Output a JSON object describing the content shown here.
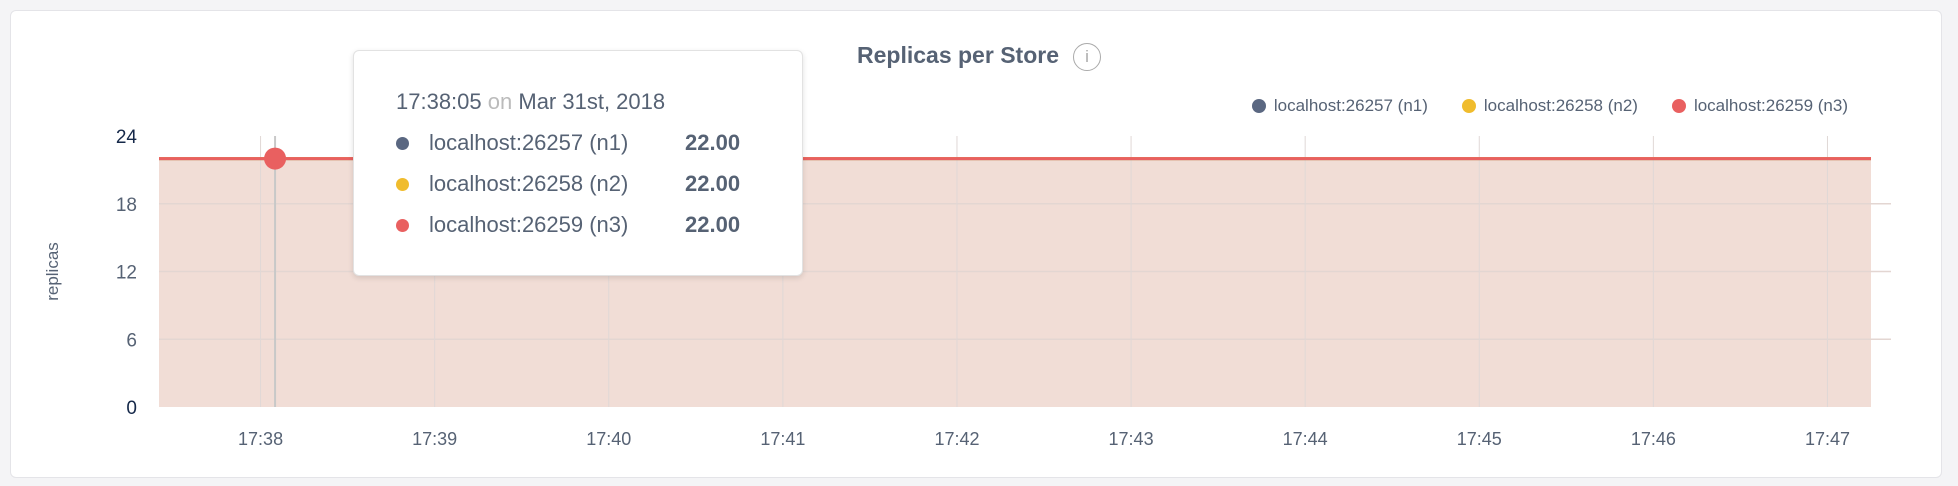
{
  "chart_data": {
    "type": "area",
    "title": "Replicas per Store",
    "ylabel": "replicas",
    "xlabel": "",
    "ylim": [
      0,
      24
    ],
    "yticks": [
      "0",
      "6",
      "12",
      "18",
      "24"
    ],
    "xticks": [
      "17:38",
      "17:39",
      "17:40",
      "17:41",
      "17:42",
      "17:43",
      "17:44",
      "17:45",
      "17:46",
      "17:47"
    ],
    "xlim": [
      "17:37:25",
      "17:47:15"
    ],
    "grid": true,
    "legend_position": "top-right",
    "series": [
      {
        "name": "localhost:26257 (n1)",
        "color": "#5a6781",
        "x": [
          "17:37:25",
          "17:47:15"
        ],
        "values": [
          22,
          22
        ]
      },
      {
        "name": "localhost:26258 (n2)",
        "color": "#f0bc2d",
        "x": [
          "17:37:25",
          "17:47:15"
        ],
        "values": [
          22,
          22
        ]
      },
      {
        "name": "localhost:26259 (n3)",
        "color": "#e96060",
        "x": [
          "17:37:25",
          "17:47:15"
        ],
        "values": [
          22,
          22
        ]
      }
    ],
    "fill_color": "#f1ddd6",
    "tooltip": {
      "time": "17:38:05",
      "on": "on",
      "date": "Mar 31st, 2018",
      "rows": [
        {
          "label": "localhost:26257 (n1)",
          "value": "22.00"
        },
        {
          "label": "localhost:26258 (n2)",
          "value": "22.00"
        },
        {
          "label": "localhost:26259 (n3)",
          "value": "22.00"
        }
      ]
    }
  },
  "info_icon": "info-circle-icon"
}
